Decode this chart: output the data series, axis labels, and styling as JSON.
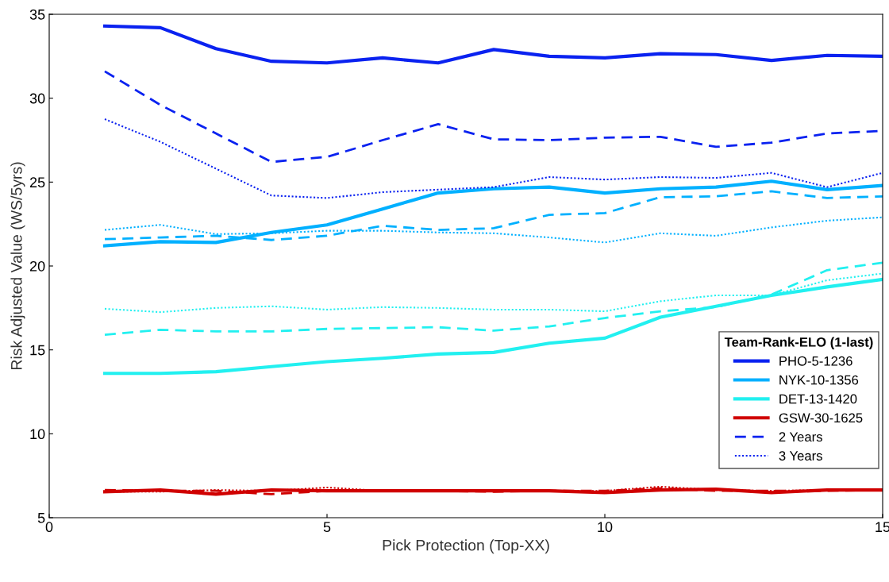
{
  "chart_data": {
    "type": "line",
    "xlabel": "Pick Protection (Top-XX)",
    "ylabel": "Risk Adjusted Value (WS/5yrs)",
    "legend_title": "Team-Rank-ELO (1-last)",
    "legend": "right",
    "grid": false,
    "marker": "none",
    "x": [
      1,
      2,
      3,
      4,
      5,
      6,
      7,
      8,
      9,
      10,
      11,
      12,
      13,
      14,
      15
    ],
    "xlim": [
      0,
      15
    ],
    "xticks": [
      0,
      5,
      10,
      15
    ],
    "ylim": [
      5,
      35
    ],
    "yticks": [
      5,
      10,
      15,
      20,
      25,
      30,
      35
    ],
    "series": [
      {
        "name": "PHO-5-1236",
        "color": "#0a22f0",
        "line_style": "solid",
        "values": [
          34.3,
          34.2,
          32.95,
          32.2,
          32.1,
          32.4,
          32.1,
          32.9,
          32.5,
          32.4,
          32.65,
          32.6,
          32.25,
          32.55,
          32.5
        ]
      },
      {
        "name": "NYK-10-1356",
        "color": "#00b0ff",
        "line_style": "solid",
        "values": [
          21.2,
          21.45,
          21.4,
          22.0,
          22.45,
          23.4,
          24.35,
          24.6,
          24.7,
          24.35,
          24.6,
          24.7,
          25.05,
          24.55,
          24.8
        ]
      },
      {
        "name": "DET-13-1420",
        "color": "#22f0f0",
        "line_style": "solid",
        "values": [
          13.6,
          13.6,
          13.7,
          14.0,
          14.3,
          14.5,
          14.75,
          14.85,
          15.4,
          15.7,
          16.95,
          17.6,
          18.25,
          18.75,
          19.2
        ]
      },
      {
        "name": "GSW-30-1625",
        "color": "#d00000",
        "line_style": "solid",
        "values": [
          6.55,
          6.65,
          6.4,
          6.65,
          6.6,
          6.6,
          6.6,
          6.6,
          6.6,
          6.5,
          6.65,
          6.7,
          6.5,
          6.65,
          6.65
        ]
      },
      {
        "name": "2 Years",
        "color": "#0a22f0",
        "line_style": "dashed",
        "values": [
          31.6,
          29.6,
          27.9,
          26.2,
          26.5,
          27.5,
          28.45,
          27.55,
          27.5,
          27.65,
          27.7,
          27.1,
          27.35,
          27.9,
          28.05
        ]
      },
      {
        "name": "3 Years",
        "color": "#0a22f0",
        "line_style": "dotted",
        "values": [
          28.75,
          27.4,
          25.8,
          24.2,
          24.05,
          24.4,
          24.55,
          24.7,
          25.3,
          25.15,
          25.3,
          25.25,
          25.55,
          24.7,
          25.55
        ]
      },
      {
        "color": "#00b0ff",
        "line_style": "dashed",
        "values": [
          21.6,
          21.7,
          21.8,
          21.55,
          21.8,
          22.4,
          22.15,
          22.25,
          23.05,
          23.15,
          24.1,
          24.15,
          24.45,
          24.05,
          24.15
        ]
      },
      {
        "color": "#00b0ff",
        "line_style": "dotted",
        "values": [
          22.15,
          22.45,
          21.9,
          21.95,
          22.1,
          22.1,
          22.0,
          21.95,
          21.7,
          21.4,
          21.95,
          21.8,
          22.3,
          22.7,
          22.9
        ]
      },
      {
        "color": "#22f0f0",
        "line_style": "dashed",
        "values": [
          15.9,
          16.2,
          16.1,
          16.1,
          16.25,
          16.3,
          16.35,
          16.15,
          16.4,
          16.9,
          17.3,
          17.55,
          18.3,
          19.75,
          20.2
        ]
      },
      {
        "color": "#22f0f0",
        "line_style": "dotted",
        "values": [
          17.45,
          17.25,
          17.5,
          17.6,
          17.4,
          17.55,
          17.5,
          17.4,
          17.4,
          17.3,
          17.9,
          18.25,
          18.25,
          19.15,
          19.55
        ]
      },
      {
        "color": "#d00000",
        "line_style": "dashed",
        "values": [
          6.65,
          6.6,
          6.6,
          6.4,
          6.6,
          6.6,
          6.6,
          6.55,
          6.6,
          6.6,
          6.75,
          6.6,
          6.6,
          6.6,
          6.65
        ]
      },
      {
        "color": "#d00000",
        "line_style": "dotted",
        "values": [
          6.55,
          6.55,
          6.65,
          6.6,
          6.8,
          6.6,
          6.6,
          6.6,
          6.6,
          6.6,
          6.85,
          6.65,
          6.6,
          6.65,
          6.65
        ]
      }
    ]
  }
}
